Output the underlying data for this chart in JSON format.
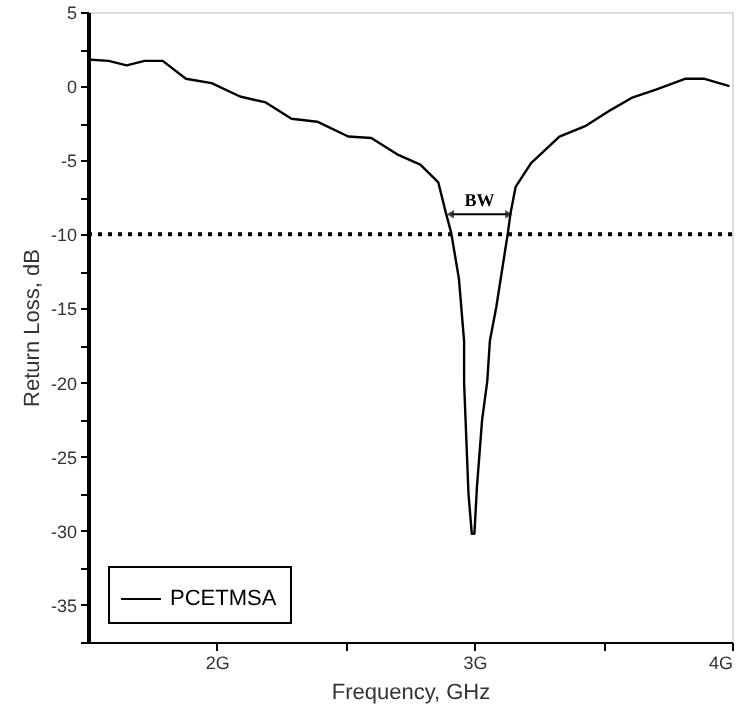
{
  "chart_data": {
    "type": "line",
    "xlabel": "Frequency, GHz",
    "ylabel": "Return Loss, dB",
    "x": [
      1.5,
      1.58,
      1.65,
      1.72,
      1.79,
      1.88,
      1.98,
      2.09,
      2.19,
      2.29,
      2.39,
      2.51,
      2.6,
      2.7,
      2.79,
      2.86,
      2.89,
      2.91,
      2.94,
      2.96,
      2.96,
      2.977,
      2.99,
      3.0,
      3.01,
      3.03,
      3.05,
      3.06,
      3.085,
      3.13,
      3.14,
      3.16,
      3.22,
      3.33,
      3.43,
      3.53,
      3.61,
      3.71,
      3.82,
      3.89,
      3.99
    ],
    "series": [
      {
        "name": "PCETMSA",
        "color": "#000000",
        "values": [
          1.8,
          1.7,
          1.4,
          1.7,
          1.7,
          0.5,
          0.2,
          -0.7,
          -1.1,
          -2.2,
          -2.4,
          -3.4,
          -3.5,
          -4.6,
          -5.3,
          -6.5,
          -8.6,
          -9.9,
          -13,
          -17.2,
          -20,
          -27.5,
          -30.2,
          -30.2,
          -27,
          -22.5,
          -19.9,
          -17.2,
          -14.9,
          -9.9,
          -8.6,
          -6.8,
          -5.2,
          -3.4,
          -2.7,
          -1.6,
          -0.8,
          -0.2,
          0.5,
          0.5,
          0
        ]
      }
    ],
    "xlim": [
      1.5,
      4
    ],
    "xticks": [
      {
        "value": 2,
        "label": "2G"
      },
      {
        "value": 2.5,
        "label": null
      },
      {
        "value": 3,
        "label": "3G"
      },
      {
        "value": 3.5,
        "label": null
      },
      {
        "value": 4,
        "label": "4G"
      }
    ],
    "ylim": [
      -37.5,
      5
    ],
    "yticks": [
      {
        "value": -37.5,
        "label": null
      },
      -35,
      {
        "value": -32.5,
        "label": null
      },
      -30,
      {
        "value": -27.5,
        "label": null
      },
      -25,
      {
        "value": -22.5,
        "label": null
      },
      -20,
      {
        "value": -17.5,
        "label": null
      },
      -15,
      {
        "value": -12.5,
        "label": null
      },
      -10,
      {
        "value": -7.5,
        "label": null
      },
      -5,
      {
        "value": -2.5,
        "label": null
      },
      0,
      {
        "value": 2.5,
        "label": null
      },
      5
    ],
    "ref_lines": [
      {
        "axis": "y",
        "value": -10,
        "color": "#000000",
        "line_style": "dotted"
      }
    ],
    "annotations": [
      "BW"
    ],
    "legend": "bottom left",
    "grid": false,
    "line_style": "solid",
    "marker": "none"
  }
}
